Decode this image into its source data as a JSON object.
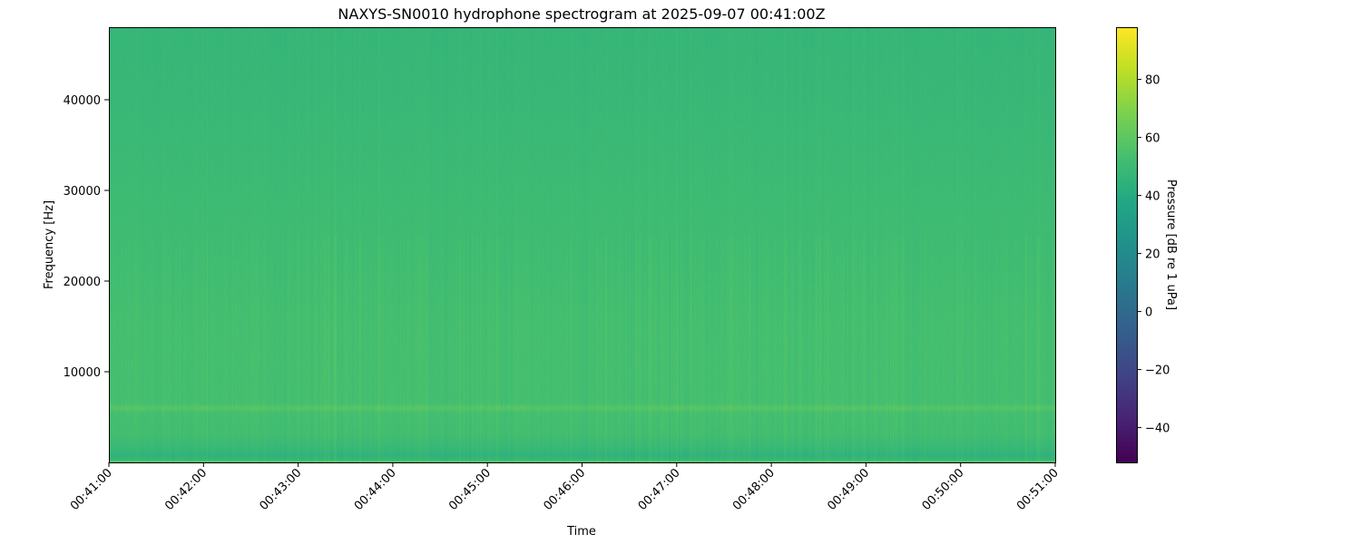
{
  "chart_data": {
    "type": "heatmap",
    "title": "NAXYS-SN0010 hydrophone spectrogram at 2025-09-07 00:41:00Z",
    "xlabel": "Time",
    "ylabel": "Frequency [Hz]",
    "colorbar_label": "Pressure [dB re 1 uPa]",
    "colormap": "viridis",
    "xlim": [
      "00:41:00",
      "00:51:00"
    ],
    "xticks": [
      "00:41:00",
      "00:42:00",
      "00:43:00",
      "00:44:00",
      "00:45:00",
      "00:46:00",
      "00:47:00",
      "00:48:00",
      "00:49:00",
      "00:50:00",
      "00:51:00"
    ],
    "ylim": [
      0,
      48000
    ],
    "yticks": [
      10000,
      20000,
      30000,
      40000
    ],
    "clim": [
      -52,
      98
    ],
    "cticks": [
      -40,
      -20,
      0,
      20,
      40,
      60,
      80
    ],
    "mean_level_profile": {
      "frequency_hz": [
        0,
        300,
        800,
        1500,
        3000,
        5500,
        6000,
        6500,
        10000,
        15000,
        20000,
        30000,
        40000,
        48000
      ],
      "level_db": [
        62,
        47,
        45,
        48,
        52,
        53,
        58,
        53,
        53,
        53,
        52,
        50,
        48,
        47
      ]
    },
    "grid": false
  }
}
